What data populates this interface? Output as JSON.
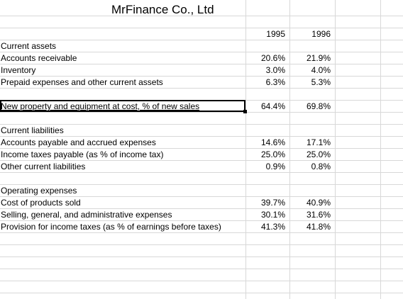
{
  "sheet": {
    "title": "MrFinance Co., Ltd",
    "years": [
      "1995",
      "1996"
    ],
    "sections": {
      "current_assets": {
        "heading": "Current assets",
        "rows": [
          {
            "label": "Accounts receivable",
            "y1995": "20.6%",
            "y1996": "21.9%"
          },
          {
            "label": "Inventory",
            "y1995": "3.0%",
            "y1996": "4.0%"
          },
          {
            "label": "Prepaid expenses and other current assets",
            "y1995": "6.3%",
            "y1996": "5.3%"
          }
        ]
      },
      "property": {
        "label": "New property and equipment at cost, % of new sales",
        "y1995": "64.4%",
        "y1996": "69.8%"
      },
      "current_liabilities": {
        "heading": "Current liabilities",
        "rows": [
          {
            "label": "Accounts payable and accrued expenses",
            "y1995": "14.6%",
            "y1996": "17.1%"
          },
          {
            "label": "Income taxes payable (as % of income tax)",
            "y1995": "25.0%",
            "y1996": "25.0%"
          },
          {
            "label": "Other current liabilities",
            "y1995": "0.9%",
            "y1996": "0.8%"
          }
        ]
      },
      "operating_expenses": {
        "heading": "Operating expenses",
        "rows": [
          {
            "label": "Cost of products sold",
            "y1995": "39.7%",
            "y1996": "40.9%"
          },
          {
            "label": "Selling, general, and administrative expenses",
            "y1995": "30.1%",
            "y1996": "31.6%"
          },
          {
            "label": "Provision for income taxes (as % of earnings before taxes)",
            "y1995": "41.3%",
            "y1996": "41.8%"
          }
        ]
      }
    },
    "colors": {
      "gridline": "#d8d8d8",
      "selection": "#000000"
    }
  }
}
